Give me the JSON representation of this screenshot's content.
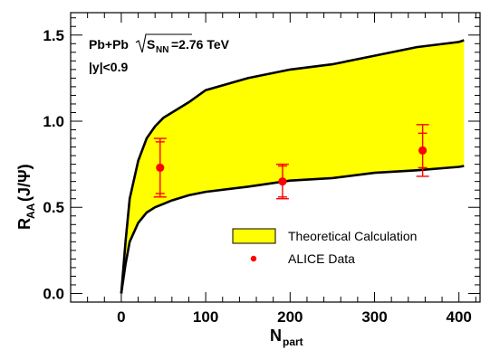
{
  "chart_data": {
    "type": "area",
    "xlabel": "N",
    "xlabel_sub": "part",
    "ylabel": "R",
    "ylabel_sub": "AA",
    "ylabel_suffix": "(J/Ψ)",
    "xlim": [
      -60,
      425
    ],
    "ylim": [
      -0.05,
      1.63
    ],
    "x_ticks": [
      0,
      100,
      200,
      300,
      400
    ],
    "x_tick_labels": [
      "0",
      "100",
      "200",
      "300",
      "400"
    ],
    "y_ticks": [
      0.0,
      0.5,
      1.0,
      1.5
    ],
    "y_tick_labels": [
      "0.0",
      "0.5",
      "1.0",
      "1.5"
    ],
    "grid": false,
    "legend_position": "bottom-right",
    "annotations": {
      "system": "Pb+Pb",
      "energy_var": "S",
      "energy_sub": "NN",
      "energy_value": "=2.76 TeV",
      "rapidity": "|y|<0.9"
    },
    "band": {
      "name": "Theoretical Calculation",
      "color": "#ffff00",
      "x": [
        0,
        5,
        10,
        20,
        30,
        40,
        50,
        60,
        80,
        100,
        150,
        200,
        250,
        300,
        350,
        400,
        406
      ],
      "upper": [
        0.0,
        0.3,
        0.55,
        0.77,
        0.9,
        0.97,
        1.02,
        1.05,
        1.11,
        1.18,
        1.25,
        1.3,
        1.33,
        1.38,
        1.43,
        1.46,
        1.47
      ],
      "lower": [
        0.0,
        0.17,
        0.3,
        0.41,
        0.47,
        0.5,
        0.52,
        0.54,
        0.57,
        0.59,
        0.62,
        0.655,
        0.67,
        0.7,
        0.715,
        0.735,
        0.74
      ]
    },
    "series": [
      {
        "name": "ALICE Data",
        "color": "#ff0000",
        "x": [
          46,
          191,
          357
        ],
        "y": [
          0.73,
          0.65,
          0.83
        ],
        "stat_err": [
          0.15,
          0.09,
          0.1
        ],
        "syst_err": [
          0.17,
          0.1,
          0.15
        ]
      }
    ]
  }
}
